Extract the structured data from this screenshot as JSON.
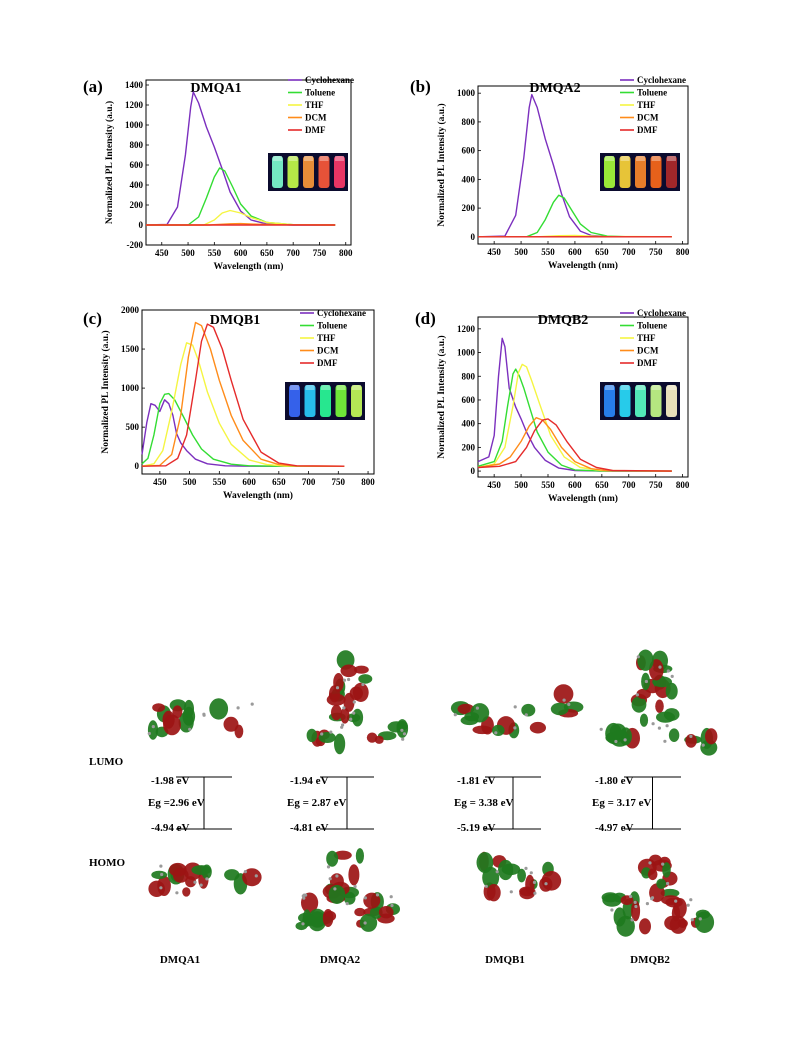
{
  "chart_data": [
    {
      "type": "line",
      "panel": "(a)",
      "title": "DMQA1",
      "xlabel": "Wavelength (nm)",
      "ylabel": "Normalized PL Intensity (a.u.)",
      "xlim": [
        420,
        810
      ],
      "ylim": [
        -200,
        1450
      ],
      "xticks": [
        450,
        500,
        550,
        600,
        650,
        700,
        750,
        800
      ],
      "yticks": [
        -200,
        0,
        200,
        400,
        600,
        800,
        1000,
        1200,
        1400
      ],
      "legend": "top-right",
      "inset": "vial-photo",
      "series": [
        {
          "name": "Cyclohexane",
          "color": "#7b2fbe",
          "x": [
            420,
            460,
            480,
            495,
            505,
            510,
            520,
            535,
            550,
            565,
            580,
            600,
            620,
            650,
            700,
            780
          ],
          "y": [
            0,
            5,
            180,
            700,
            1180,
            1330,
            1220,
            980,
            780,
            560,
            330,
            140,
            50,
            10,
            0,
            0
          ]
        },
        {
          "name": "Toluene",
          "color": "#33dd33",
          "x": [
            420,
            500,
            520,
            535,
            550,
            560,
            570,
            585,
            600,
            620,
            650,
            700,
            780
          ],
          "y": [
            0,
            0,
            80,
            270,
            480,
            570,
            540,
            380,
            210,
            90,
            25,
            3,
            0
          ]
        },
        {
          "name": "THF",
          "color": "#f5f542",
          "x": [
            420,
            530,
            550,
            565,
            580,
            600,
            620,
            650,
            700,
            780
          ],
          "y": [
            0,
            0,
            50,
            120,
            145,
            120,
            75,
            25,
            3,
            0
          ]
        },
        {
          "name": "DCM",
          "color": "#ff8c1a",
          "x": [
            420,
            540,
            580,
            600,
            630,
            680,
            780
          ],
          "y": [
            0,
            0,
            12,
            14,
            8,
            2,
            0
          ]
        },
        {
          "name": "DMF",
          "color": "#e52b2b",
          "x": [
            420,
            780
          ],
          "y": [
            0,
            0
          ]
        }
      ]
    },
    {
      "type": "line",
      "panel": "(b)",
      "title": "DMQA2",
      "xlabel": "Wavelength (nm)",
      "ylabel": "Normalized PL Intensity (a.u.)",
      "xlim": [
        420,
        810
      ],
      "ylim": [
        -50,
        1050
      ],
      "xticks": [
        450,
        500,
        550,
        600,
        650,
        700,
        750,
        800
      ],
      "yticks": [
        0,
        200,
        400,
        600,
        800,
        1000
      ],
      "legend": "top-right",
      "inset": "vial-photo",
      "series": [
        {
          "name": "Cyclohexane",
          "color": "#7b2fbe",
          "x": [
            420,
            470,
            490,
            505,
            515,
            520,
            530,
            545,
            560,
            575,
            590,
            610,
            630,
            660,
            700,
            780
          ],
          "y": [
            0,
            5,
            150,
            550,
            900,
            990,
            900,
            680,
            500,
            300,
            140,
            40,
            10,
            2,
            0,
            0
          ]
        },
        {
          "name": "Toluene",
          "color": "#33dd33",
          "x": [
            420,
            510,
            530,
            545,
            560,
            570,
            580,
            595,
            610,
            630,
            660,
            700,
            780
          ],
          "y": [
            0,
            0,
            30,
            120,
            240,
            290,
            270,
            180,
            90,
            30,
            5,
            0,
            0
          ]
        },
        {
          "name": "THF",
          "color": "#f5f542",
          "x": [
            420,
            530,
            570,
            600,
            650,
            780
          ],
          "y": [
            0,
            0,
            8,
            10,
            3,
            0
          ]
        },
        {
          "name": "DCM",
          "color": "#ff8c1a",
          "x": [
            420,
            780
          ],
          "y": [
            0,
            0
          ]
        },
        {
          "name": "DMF",
          "color": "#e52b2b",
          "x": [
            420,
            780
          ],
          "y": [
            0,
            0
          ]
        }
      ]
    },
    {
      "type": "line",
      "panel": "(c)",
      "title": "DMQB1",
      "xlabel": "Wavelength (nm)",
      "ylabel": "Normalized PL Intensity (a.u.)",
      "xlim": [
        420,
        810
      ],
      "ylim": [
        -100,
        2000
      ],
      "xticks": [
        450,
        500,
        550,
        600,
        650,
        700,
        750,
        800
      ],
      "yticks": [
        0,
        500,
        1000,
        1500,
        2000
      ],
      "legend": "top-right",
      "inset": "vial-photo",
      "series": [
        {
          "name": "Cyclohexane",
          "color": "#7b2fbe",
          "x": [
            420,
            428,
            435,
            442,
            450,
            458,
            465,
            472,
            478,
            485,
            495,
            510,
            530,
            560,
            600,
            700,
            760
          ],
          "y": [
            150,
            560,
            800,
            780,
            700,
            850,
            800,
            650,
            420,
            300,
            200,
            90,
            30,
            5,
            0,
            0,
            0
          ]
        },
        {
          "name": "Toluene",
          "color": "#33dd33",
          "x": [
            420,
            430,
            440,
            450,
            458,
            465,
            475,
            490,
            505,
            520,
            540,
            570,
            600,
            650,
            760
          ],
          "y": [
            30,
            100,
            400,
            800,
            920,
            930,
            850,
            630,
            400,
            220,
            90,
            25,
            5,
            0,
            0
          ]
        },
        {
          "name": "THF",
          "color": "#f5f542",
          "x": [
            420,
            440,
            455,
            470,
            485,
            495,
            505,
            515,
            530,
            550,
            570,
            600,
            630,
            660,
            760
          ],
          "y": [
            0,
            30,
            200,
            700,
            1300,
            1580,
            1550,
            1350,
            950,
            550,
            280,
            80,
            20,
            3,
            0
          ]
        },
        {
          "name": "DCM",
          "color": "#ff8c1a",
          "x": [
            420,
            450,
            470,
            485,
            498,
            510,
            520,
            535,
            550,
            570,
            590,
            620,
            650,
            680,
            760
          ],
          "y": [
            0,
            10,
            150,
            650,
            1400,
            1840,
            1800,
            1500,
            1100,
            650,
            330,
            90,
            20,
            3,
            0
          ]
        },
        {
          "name": "DMF",
          "color": "#e52b2b",
          "x": [
            420,
            460,
            480,
            495,
            510,
            520,
            530,
            540,
            555,
            570,
            590,
            620,
            650,
            680,
            760
          ],
          "y": [
            0,
            5,
            100,
            400,
            1100,
            1600,
            1820,
            1780,
            1500,
            1100,
            600,
            180,
            40,
            5,
            0
          ]
        }
      ]
    },
    {
      "type": "line",
      "panel": "(d)",
      "title": "DMQB2",
      "xlabel": "Wavelength (nm)",
      "ylabel": "Normalized PL Intensity (a.u.)",
      "xlim": [
        420,
        810
      ],
      "ylim": [
        -50,
        1300
      ],
      "xticks": [
        450,
        500,
        550,
        600,
        650,
        700,
        750,
        800
      ],
      "yticks": [
        0,
        200,
        400,
        600,
        800,
        1000,
        1200
      ],
      "legend": "top-right",
      "inset": "vial-photo",
      "series": [
        {
          "name": "Cyclohexane",
          "color": "#7b2fbe",
          "x": [
            420,
            440,
            450,
            458,
            465,
            470,
            478,
            490,
            500,
            510,
            525,
            545,
            570,
            600,
            650,
            780
          ],
          "y": [
            80,
            120,
            300,
            800,
            1120,
            1050,
            700,
            540,
            440,
            330,
            200,
            90,
            25,
            5,
            0,
            0
          ]
        },
        {
          "name": "Toluene",
          "color": "#33dd33",
          "x": [
            420,
            450,
            465,
            475,
            485,
            490,
            497,
            505,
            515,
            530,
            550,
            575,
            600,
            650,
            780
          ],
          "y": [
            40,
            80,
            250,
            550,
            820,
            860,
            800,
            700,
            550,
            330,
            160,
            50,
            10,
            0,
            0
          ]
        },
        {
          "name": "THF",
          "color": "#f5f542",
          "x": [
            420,
            450,
            470,
            485,
            495,
            502,
            510,
            520,
            535,
            555,
            580,
            610,
            650,
            780
          ],
          "y": [
            30,
            60,
            200,
            550,
            830,
            900,
            880,
            760,
            560,
            300,
            120,
            30,
            5,
            0
          ]
        },
        {
          "name": "DCM",
          "color": "#ff8c1a",
          "x": [
            420,
            460,
            480,
            500,
            515,
            528,
            540,
            555,
            575,
            600,
            630,
            660,
            780
          ],
          "y": [
            30,
            60,
            120,
            250,
            380,
            450,
            430,
            350,
            200,
            80,
            20,
            3,
            0
          ]
        },
        {
          "name": "DMF",
          "color": "#e52b2b",
          "x": [
            420,
            460,
            490,
            510,
            525,
            540,
            550,
            565,
            585,
            610,
            640,
            670,
            780
          ],
          "y": [
            30,
            40,
            80,
            200,
            340,
            430,
            440,
            390,
            250,
            100,
            30,
            5,
            0
          ]
        }
      ]
    }
  ],
  "energy_diagram": {
    "lumo_label": "LUMO",
    "homo_label": "HOMO",
    "molecules": [
      {
        "name": "DMQA1",
        "lumo": "-1.98 eV",
        "gap": "Eg =2.96 eV",
        "homo": "-4.94 eV"
      },
      {
        "name": "DMQA2",
        "lumo": "-1.94 eV",
        "gap": "Eg = 2.87 eV",
        "homo": "-4.81 eV"
      },
      {
        "name": "DMQB1",
        "lumo": "-1.81 eV",
        "gap": "Eg = 3.38 eV",
        "homo": "-5.19 eV"
      },
      {
        "name": "DMQB2",
        "lumo": "-1.80 eV",
        "gap": "Eg = 3.17 eV",
        "homo": "-4.97 eV"
      }
    ]
  },
  "colors": {
    "orbital_red": "#9c1414",
    "orbital_green": "#1e7a1e",
    "atom_gray": "#9a9a9a",
    "inset_bg": "#0b0b2e"
  }
}
